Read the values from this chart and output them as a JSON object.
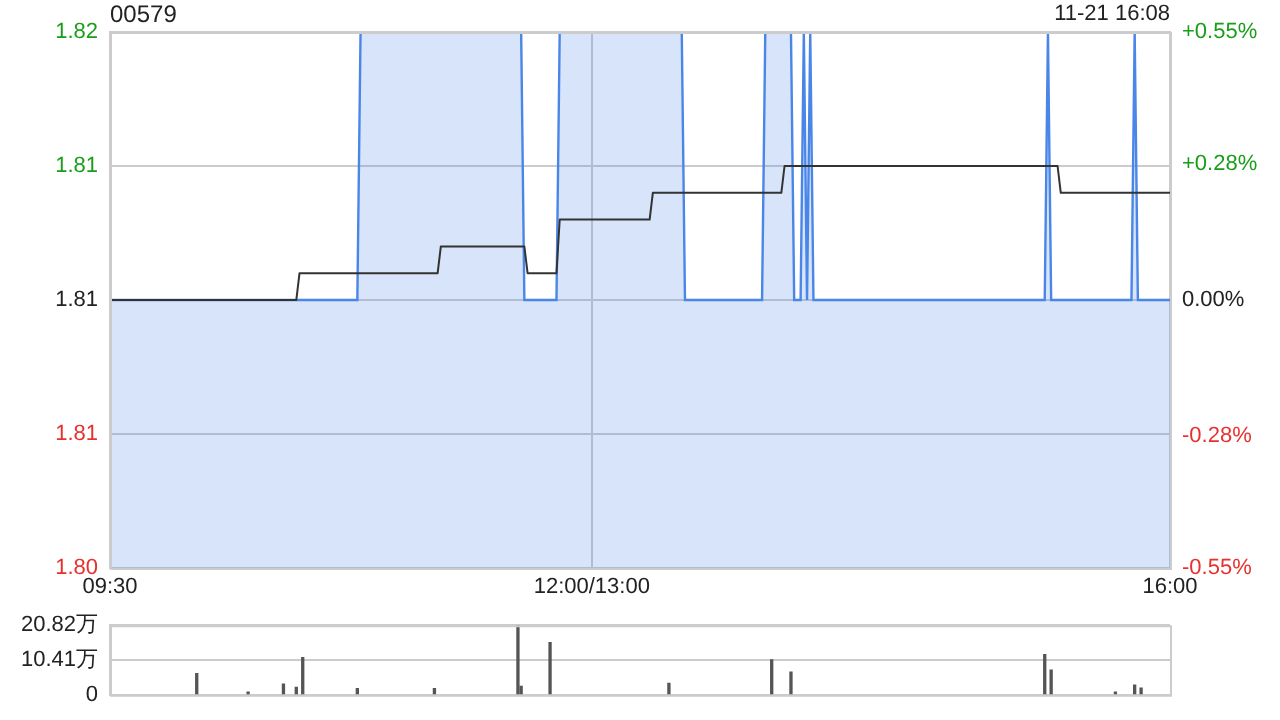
{
  "chart_data": [
    {
      "type": "line",
      "title": "00579",
      "annotations": [
        "11-21 16:08"
      ],
      "categories": [
        "09:30",
        null,
        null,
        null,
        null,
        null,
        null,
        null,
        null,
        null,
        null,
        null,
        null,
        null,
        null,
        null,
        null,
        null,
        null,
        null,
        null,
        null,
        null,
        null,
        null,
        null,
        null,
        null,
        null,
        null,
        null,
        null,
        null,
        null,
        null,
        null,
        null,
        null,
        null,
        null,
        null,
        null,
        null,
        null,
        null,
        null,
        null,
        null,
        null,
        null,
        null,
        null,
        null,
        null,
        null,
        null,
        null,
        null,
        null,
        null,
        null,
        null,
        null,
        null,
        null,
        null,
        null,
        null,
        null,
        null,
        null,
        null,
        null,
        null,
        null,
        null,
        null,
        null,
        null,
        null,
        null,
        null,
        null,
        null,
        null,
        null,
        null,
        null,
        null,
        null,
        null,
        null,
        null,
        null,
        null,
        null,
        null,
        null,
        null,
        null,
        null,
        null,
        null,
        null,
        null,
        null,
        null,
        null,
        null,
        null,
        null,
        null,
        null,
        null,
        null,
        null,
        null,
        null,
        null,
        null,
        null,
        null,
        null,
        null,
        null,
        null,
        null,
        null,
        null,
        null,
        null,
        null,
        null,
        null,
        null,
        null,
        null,
        null,
        null,
        null,
        null,
        null,
        null,
        null,
        null,
        null,
        null,
        null,
        null,
        null,
        "12:00/13:00",
        null,
        null,
        null,
        null,
        null,
        null,
        null,
        null,
        null,
        null,
        null,
        null,
        null,
        null,
        null,
        null,
        null,
        null,
        null,
        null,
        null,
        null,
        null,
        null,
        null,
        null,
        null,
        null,
        null,
        null,
        null,
        null,
        null,
        null,
        null,
        null,
        null,
        null,
        null,
        null,
        null,
        null,
        null,
        null,
        null,
        null,
        null,
        null,
        null,
        null,
        null,
        null,
        null,
        null,
        null,
        null,
        null,
        null,
        null,
        null,
        null,
        null,
        null,
        null,
        null,
        null,
        null,
        null,
        null,
        null,
        null,
        null,
        null,
        null,
        null,
        null,
        null,
        null,
        null,
        null,
        null,
        null,
        null,
        null,
        null,
        null,
        null,
        null,
        null,
        null,
        null,
        null,
        null,
        null,
        null,
        null,
        null,
        null,
        null,
        null,
        null,
        null,
        null,
        null,
        null,
        null,
        null,
        null,
        null,
        null,
        null,
        null,
        null,
        null,
        null,
        null,
        null,
        null,
        null,
        null,
        null,
        null,
        null,
        null,
        null,
        null,
        null,
        null,
        null,
        null,
        null,
        null,
        null,
        null,
        null,
        null,
        null,
        null,
        null,
        null,
        null,
        null,
        null,
        null,
        null,
        null,
        null,
        null,
        null,
        null,
        null,
        null,
        null,
        null,
        null,
        null,
        null,
        null,
        null,
        null,
        null,
        null,
        null,
        null,
        null,
        null,
        null,
        null,
        null,
        null,
        null,
        null,
        null,
        null,
        null,
        null,
        null,
        null,
        null,
        "16:00"
      ],
      "ylim": [
        1.8,
        1.82
      ],
      "yticks": [
        {
          "value": 1.8,
          "label": "1.80"
        },
        {
          "value": 1.805,
          "label": "1.81"
        },
        {
          "value": 1.81,
          "label": "1.81"
        },
        {
          "value": 1.815,
          "label": "1.81"
        },
        {
          "value": 1.82,
          "label": "1.82"
        }
      ],
      "y2lim": [
        -0.55,
        0.55
      ],
      "y2ticks": [
        {
          "value": -0.55,
          "label": "-0.55%"
        },
        {
          "value": -0.28,
          "label": "-0.28%"
        },
        {
          "value": 0,
          "label": "0.00%"
        },
        {
          "value": 0.28,
          "label": "+0.28%"
        },
        {
          "value": 0.55,
          "label": "+0.55%"
        }
      ],
      "grid": true,
      "series": [
        {
          "type": "area",
          "color": "#4a86e8",
          "values": [
            1.81,
            1.81,
            1.81,
            1.81,
            1.81,
            1.81,
            1.81,
            1.81,
            1.81,
            1.81,
            1.81,
            1.81,
            1.81,
            1.81,
            1.81,
            1.81,
            1.81,
            1.81,
            1.81,
            1.81,
            1.81,
            1.81,
            1.81,
            1.81,
            1.81,
            1.81,
            1.81,
            1.81,
            1.81,
            1.81,
            1.81,
            1.81,
            1.81,
            1.81,
            1.81,
            1.81,
            1.81,
            1.81,
            1.81,
            1.81,
            1.81,
            1.81,
            1.81,
            1.81,
            1.81,
            1.81,
            1.81,
            1.81,
            1.81,
            1.81,
            1.81,
            1.81,
            1.81,
            1.81,
            1.81,
            1.81,
            1.81,
            1.81,
            1.81,
            1.81,
            1.81,
            1.81,
            1.81,
            1.81,
            1.81,
            1.81,
            1.81,
            1.81,
            1.81,
            1.81,
            1.81,
            1.81,
            1.81,
            1.81,
            1.81,
            1.81,
            1.81,
            1.81,
            1.82,
            1.82,
            1.82,
            1.82,
            1.82,
            1.82,
            1.82,
            1.82,
            1.82,
            1.82,
            1.82,
            1.82,
            1.82,
            1.82,
            1.82,
            1.82,
            1.82,
            1.82,
            1.82,
            1.82,
            1.82,
            1.82,
            1.82,
            1.82,
            1.82,
            1.82,
            1.82,
            1.82,
            1.82,
            1.82,
            1.82,
            1.82,
            1.82,
            1.82,
            1.82,
            1.82,
            1.82,
            1.82,
            1.82,
            1.82,
            1.82,
            1.82,
            1.82,
            1.82,
            1.82,
            1.82,
            1.82,
            1.82,
            1.82,
            1.82,
            1.82,
            1.81,
            1.81,
            1.81,
            1.81,
            1.81,
            1.81,
            1.81,
            1.81,
            1.81,
            1.81,
            1.81,
            1.82,
            1.82,
            1.82,
            1.82,
            1.82,
            1.82,
            1.82,
            1.82,
            1.82,
            1.82,
            1.82,
            1.82,
            1.82,
            1.82,
            1.82,
            1.82,
            1.82,
            1.82,
            1.82,
            1.82,
            1.82,
            1.82,
            1.82,
            1.82,
            1.82,
            1.82,
            1.82,
            1.82,
            1.82,
            1.82,
            1.82,
            1.82,
            1.82,
            1.82,
            1.82,
            1.82,
            1.82,
            1.82,
            1.82,
            1.81,
            1.81,
            1.81,
            1.81,
            1.81,
            1.81,
            1.81,
            1.81,
            1.81,
            1.81,
            1.81,
            1.81,
            1.81,
            1.81,
            1.81,
            1.81,
            1.81,
            1.81,
            1.81,
            1.81,
            1.81,
            1.81,
            1.81,
            1.81,
            1.81,
            1.82,
            1.82,
            1.82,
            1.82,
            1.82,
            1.82,
            1.82,
            1.82,
            1.82,
            1.81,
            1.81,
            1.81,
            1.82,
            1.81,
            1.82,
            1.81,
            1.81,
            1.81,
            1.81,
            1.81,
            1.81,
            1.81,
            1.81,
            1.81,
            1.81,
            1.81,
            1.81,
            1.81,
            1.81,
            1.81,
            1.81,
            1.81,
            1.81,
            1.81,
            1.81,
            1.81,
            1.81,
            1.81,
            1.81,
            1.81,
            1.81,
            1.81,
            1.81,
            1.81,
            1.81,
            1.81,
            1.81,
            1.81,
            1.81,
            1.81,
            1.81,
            1.81,
            1.81,
            1.81,
            1.81,
            1.81,
            1.81,
            1.81,
            1.81,
            1.81,
            1.81,
            1.81,
            1.81,
            1.81,
            1.81,
            1.81,
            1.81,
            1.81,
            1.81,
            1.81,
            1.81,
            1.81,
            1.81,
            1.81,
            1.81,
            1.81,
            1.81,
            1.81,
            1.81,
            1.81,
            1.81,
            1.81,
            1.81,
            1.81,
            1.81,
            1.81,
            1.81,
            1.81,
            1.82,
            1.81,
            1.81,
            1.81,
            1.81,
            1.81,
            1.81,
            1.81,
            1.81,
            1.81,
            1.81,
            1.81,
            1.81,
            1.81,
            1.81,
            1.81,
            1.81,
            1.81,
            1.81,
            1.81,
            1.81,
            1.81,
            1.81,
            1.81,
            1.81,
            1.81,
            1.81,
            1.82,
            1.81,
            1.81,
            1.81,
            1.81,
            1.81,
            1.81,
            1.81,
            1.81,
            1.81,
            1.81,
            1.81
          ]
        },
        {
          "type": "line",
          "color": "#333333",
          "values": [
            1.81,
            1.81,
            1.81,
            1.81,
            1.81,
            1.81,
            1.81,
            1.81,
            1.81,
            1.81,
            1.81,
            1.81,
            1.81,
            1.81,
            1.81,
            1.81,
            1.81,
            1.81,
            1.81,
            1.81,
            1.81,
            1.81,
            1.81,
            1.81,
            1.81,
            1.81,
            1.81,
            1.81,
            1.81,
            1.81,
            1.81,
            1.81,
            1.81,
            1.81,
            1.81,
            1.81,
            1.81,
            1.81,
            1.81,
            1.81,
            1.81,
            1.81,
            1.81,
            1.81,
            1.81,
            1.81,
            1.81,
            1.81,
            1.81,
            1.81,
            1.81,
            1.81,
            1.81,
            1.81,
            1.81,
            1.81,
            1.81,
            1.81,
            1.81,
            1.811,
            1.811,
            1.811,
            1.811,
            1.811,
            1.811,
            1.811,
            1.811,
            1.811,
            1.811,
            1.811,
            1.811,
            1.811,
            1.811,
            1.811,
            1.811,
            1.811,
            1.811,
            1.811,
            1.811,
            1.811,
            1.811,
            1.811,
            1.811,
            1.811,
            1.811,
            1.811,
            1.811,
            1.811,
            1.811,
            1.811,
            1.811,
            1.811,
            1.811,
            1.811,
            1.811,
            1.811,
            1.811,
            1.811,
            1.811,
            1.811,
            1.811,
            1.811,
            1.811,
            1.812,
            1.812,
            1.812,
            1.812,
            1.812,
            1.812,
            1.812,
            1.812,
            1.812,
            1.812,
            1.812,
            1.812,
            1.812,
            1.812,
            1.812,
            1.812,
            1.812,
            1.812,
            1.812,
            1.812,
            1.812,
            1.812,
            1.812,
            1.812,
            1.812,
            1.812,
            1.812,
            1.811,
            1.811,
            1.811,
            1.811,
            1.811,
            1.811,
            1.811,
            1.811,
            1.811,
            1.811,
            1.813,
            1.813,
            1.813,
            1.813,
            1.813,
            1.813,
            1.813,
            1.813,
            1.813,
            1.813,
            1.813,
            1.813,
            1.813,
            1.813,
            1.813,
            1.813,
            1.813,
            1.813,
            1.813,
            1.813,
            1.813,
            1.813,
            1.813,
            1.813,
            1.813,
            1.813,
            1.813,
            1.813,
            1.813,
            1.814,
            1.814,
            1.814,
            1.814,
            1.814,
            1.814,
            1.814,
            1.814,
            1.814,
            1.814,
            1.814,
            1.814,
            1.814,
            1.814,
            1.814,
            1.814,
            1.814,
            1.814,
            1.814,
            1.814,
            1.814,
            1.814,
            1.814,
            1.814,
            1.814,
            1.814,
            1.814,
            1.814,
            1.814,
            1.814,
            1.814,
            1.814,
            1.814,
            1.814,
            1.814,
            1.814,
            1.814,
            1.814,
            1.814,
            1.814,
            1.814,
            1.815,
            1.815,
            1.815,
            1.815,
            1.815,
            1.815,
            1.815,
            1.815,
            1.815,
            1.815,
            1.815,
            1.815,
            1.815,
            1.815,
            1.815,
            1.815,
            1.815,
            1.815,
            1.815,
            1.815,
            1.815,
            1.815,
            1.815,
            1.815,
            1.815,
            1.815,
            1.815,
            1.815,
            1.815,
            1.815,
            1.815,
            1.815,
            1.815,
            1.815,
            1.815,
            1.815,
            1.815,
            1.815,
            1.815,
            1.815,
            1.815,
            1.815,
            1.815,
            1.815,
            1.815,
            1.815,
            1.815,
            1.815,
            1.815,
            1.815,
            1.815,
            1.815,
            1.815,
            1.815,
            1.815,
            1.815,
            1.815,
            1.815,
            1.815,
            1.815,
            1.815,
            1.815,
            1.815,
            1.815,
            1.815,
            1.815,
            1.815,
            1.815,
            1.815,
            1.815,
            1.815,
            1.815,
            1.815,
            1.815,
            1.815,
            1.815,
            1.815,
            1.815,
            1.815,
            1.815,
            1.815,
            1.815,
            1.815,
            1.815,
            1.815,
            1.815,
            1.814,
            1.814,
            1.814,
            1.814,
            1.814,
            1.814,
            1.814,
            1.814,
            1.814,
            1.814,
            1.814,
            1.814,
            1.814,
            1.814,
            1.814,
            1.814,
            1.814,
            1.814,
            1.814,
            1.814,
            1.814,
            1.814,
            1.814,
            1.814,
            1.814,
            1.814,
            1.814,
            1.814,
            1.814,
            1.814,
            1.814,
            1.814,
            1.814,
            1.814,
            1.814
          ]
        }
      ]
    },
    {
      "type": "bar",
      "color": "#555555",
      "ylim": [
        0,
        20.82
      ],
      "yticks": [
        0,
        {
          "value": 10.41,
          "label": "10.41万"
        },
        {
          "value": 20.82,
          "label": "20.82万"
        }
      ],
      "grid": "y",
      "tick_labels": "y",
      "categories": [
        null,
        null,
        null,
        null,
        null,
        null,
        null,
        null,
        null,
        null,
        null,
        null,
        null,
        null,
        null,
        null,
        null,
        null,
        null,
        null,
        null,
        null,
        null,
        null,
        null,
        null,
        null,
        null,
        null,
        null,
        null,
        null,
        null,
        null,
        null,
        null,
        null,
        null,
        null,
        null,
        null,
        null,
        null,
        null,
        null,
        null,
        null,
        null,
        null,
        null,
        null,
        null,
        null,
        null,
        null,
        null,
        null,
        null,
        null,
        null,
        null,
        null,
        null,
        null,
        null,
        null,
        null,
        null,
        null,
        null,
        null,
        null,
        null,
        null,
        null,
        null,
        null,
        null,
        null,
        null,
        null,
        null,
        null,
        null,
        null,
        null,
        null,
        null,
        null,
        null,
        null,
        null,
        null,
        null,
        null,
        null,
        null,
        null,
        null,
        null,
        null,
        null,
        null,
        null,
        null,
        null,
        null,
        null,
        null,
        null,
        null,
        null,
        null,
        null,
        null,
        null,
        null,
        null,
        null,
        null,
        null,
        null,
        null,
        null,
        null,
        null,
        null,
        null,
        null,
        null,
        null,
        null,
        null,
        null,
        null,
        null,
        null,
        null,
        null,
        null,
        null,
        null,
        null,
        null,
        null,
        null,
        null,
        null,
        null,
        null,
        null,
        null,
        null,
        null,
        null,
        null,
        null,
        null,
        null,
        null,
        null,
        null,
        null,
        null,
        null,
        null,
        null,
        null,
        null,
        null,
        null,
        null,
        null,
        null,
        null,
        null,
        null,
        null,
        null,
        null,
        null,
        null,
        null,
        null,
        null,
        null,
        null,
        null,
        null,
        null,
        null,
        null,
        null,
        null,
        null,
        null,
        null,
        null,
        null,
        null,
        null,
        null,
        null,
        null,
        null,
        null,
        null,
        null,
        null,
        null,
        null,
        null,
        null,
        null,
        null,
        null,
        null,
        null,
        null,
        null,
        null,
        null,
        null,
        null,
        null,
        null,
        null,
        null,
        null,
        null,
        null,
        null,
        null,
        null,
        null,
        null,
        null,
        null,
        null,
        null,
        null,
        null,
        null,
        null,
        null,
        null,
        null,
        null,
        null,
        null,
        null,
        null,
        null,
        null,
        null,
        null,
        null,
        null,
        null,
        null,
        null,
        null,
        null,
        null,
        null,
        null,
        null,
        null,
        null,
        null,
        null,
        null,
        null,
        null,
        null,
        null,
        null,
        null,
        null,
        null,
        null,
        null,
        null,
        null,
        null,
        null,
        null,
        null,
        null,
        null,
        null,
        null,
        null,
        null,
        null,
        null,
        null,
        null,
        null,
        null,
        null,
        null,
        null,
        null,
        null,
        null,
        null,
        null,
        null,
        null,
        null,
        null,
        null,
        null,
        null,
        null,
        null,
        null,
        null,
        null,
        null,
        null,
        null,
        null,
        null,
        null,
        null,
        null,
        null,
        null,
        null
      ],
      "values": [
        null,
        null,
        null,
        null,
        null,
        null,
        null,
        null,
        null,
        null,
        null,
        null,
        null,
        null,
        null,
        null,
        null,
        null,
        null,
        null,
        null,
        null,
        null,
        null,
        null,
        null,
        null,
        6.3,
        null,
        null,
        null,
        null,
        null,
        null,
        null,
        null,
        null,
        null,
        null,
        null,
        null,
        null,
        null,
        0.8,
        null,
        null,
        null,
        null,
        null,
        null,
        null,
        null,
        null,
        null,
        3.2,
        null,
        null,
        null,
        2.2,
        null,
        11.1,
        null,
        null,
        null,
        null,
        null,
        null,
        null,
        null,
        null,
        null,
        null,
        null,
        null,
        null,
        null,
        null,
        1.8,
        null,
        null,
        null,
        null,
        null,
        null,
        null,
        null,
        null,
        null,
        null,
        null,
        null,
        null,
        null,
        null,
        null,
        null,
        null,
        null,
        null,
        null,
        null,
        1.8,
        null,
        null,
        null,
        null,
        null,
        null,
        null,
        null,
        null,
        null,
        null,
        null,
        null,
        null,
        null,
        null,
        null,
        null,
        null,
        null,
        null,
        null,
        null,
        null,
        null,
        20.8,
        2.5,
        null,
        null,
        null,
        null,
        null,
        null,
        null,
        null,
        15.6,
        null,
        null,
        null,
        null,
        null,
        null,
        null,
        null,
        null,
        null,
        null,
        null,
        null,
        null,
        null,
        null,
        null,
        null,
        null,
        null,
        null,
        null,
        null,
        null,
        null,
        null,
        null,
        null,
        null,
        null,
        null,
        null,
        null,
        null,
        null,
        null,
        3.4,
        null,
        null,
        null,
        null,
        null,
        null,
        null,
        null,
        null,
        null,
        null,
        null,
        null,
        null,
        null,
        null,
        null,
        null,
        null,
        null,
        null,
        null,
        null,
        null,
        null,
        null,
        null,
        null,
        null,
        null,
        null,
        10.4,
        null,
        null,
        null,
        null,
        null,
        6.8,
        null,
        null,
        null,
        null,
        null,
        null,
        null,
        null,
        null,
        null,
        null,
        null,
        null,
        null,
        null,
        null,
        null,
        null,
        null,
        null,
        null,
        null,
        null,
        null,
        null,
        null,
        null,
        null,
        null,
        null,
        null,
        null,
        null,
        null,
        null,
        null,
        null,
        null,
        null,
        null,
        null,
        null,
        null,
        null,
        null,
        null,
        null,
        null,
        null,
        null,
        null,
        null,
        null,
        null,
        null,
        null,
        null,
        null,
        null,
        null,
        null,
        null,
        null,
        null,
        null,
        null,
        null,
        null,
        null,
        null,
        null,
        null,
        null,
        null,
        null,
        null,
        null,
        null,
        12.0,
        null,
        7.4,
        null,
        null,
        null,
        null,
        null,
        null,
        null,
        null,
        null,
        null,
        null,
        null,
        null,
        null,
        null,
        null,
        null,
        null,
        null,
        0.8,
        null,
        null,
        null,
        null,
        null,
        2.9,
        null,
        2.0,
        null,
        null,
        null,
        null,
        null,
        null,
        null,
        null,
        null
      ]
    }
  ]
}
